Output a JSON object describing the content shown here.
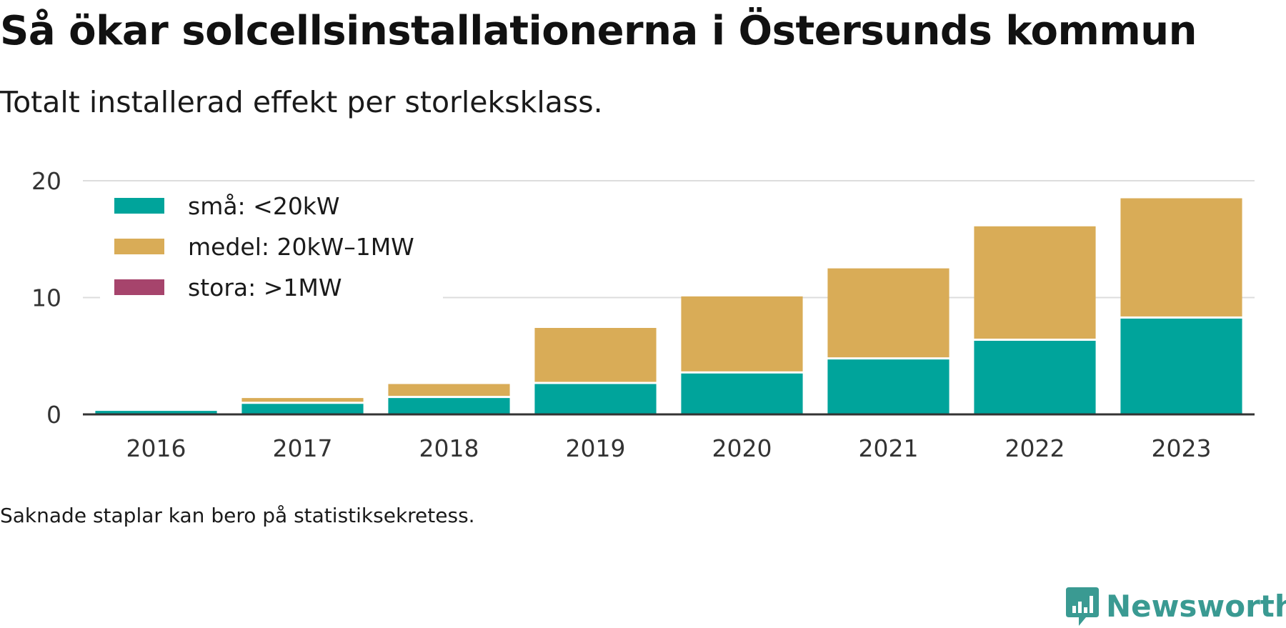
{
  "chart_data": {
    "type": "bar",
    "stacked": true,
    "title": "Så ökar solcellsinstallationerna i Östersunds kommun",
    "subtitle": "Totalt installerad effekt per storleksklass.",
    "note": "Saknade staplar kan bero på statistiksekretess.",
    "xlabel": "",
    "ylabel": "",
    "categories": [
      "2016",
      "2017",
      "2018",
      "2019",
      "2020",
      "2021",
      "2022",
      "2023"
    ],
    "ylim": [
      0,
      20
    ],
    "yticks": [
      0,
      10,
      20
    ],
    "grid": true,
    "legend_position": "top-left",
    "series": [
      {
        "name": "små: <20kW",
        "color": "#00a49b",
        "values": [
          0.3,
          0.9,
          1.4,
          2.6,
          3.5,
          4.7,
          6.3,
          8.2
        ]
      },
      {
        "name": "medel: 20kW–1MW",
        "color": "#d9ac57",
        "values": [
          0,
          0.5,
          1.2,
          4.8,
          6.6,
          7.8,
          9.8,
          10.3
        ]
      },
      {
        "name": "stora: >1MW",
        "color": "#a6446c",
        "values": [
          0,
          0,
          0,
          0,
          0,
          0,
          0,
          0
        ]
      }
    ]
  },
  "brand": {
    "name": "Newsworthy",
    "icon": "newsworthy-logo-icon",
    "color": "#3a9a92"
  }
}
